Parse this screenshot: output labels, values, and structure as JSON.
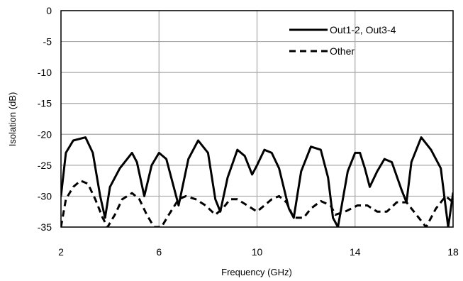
{
  "chart_data": {
    "type": "line",
    "xlabel": "Frequency (GHz)",
    "ylabel": "Isolation (dB)",
    "xlim": [
      2,
      18
    ],
    "ylim": [
      -35,
      0
    ],
    "x_ticks": [
      2,
      6,
      10,
      14,
      18
    ],
    "y_ticks": [
      0,
      -5,
      -10,
      -15,
      -20,
      -25,
      -30,
      -35
    ],
    "x_tick_labels": [
      "2",
      "6",
      "10",
      "14",
      "18"
    ],
    "y_tick_labels": [
      "0",
      "-5",
      "-10",
      "-15",
      "-20",
      "-25",
      "-30",
      "-35"
    ],
    "grid": true,
    "legend_position": "top-right",
    "series": [
      {
        "name": "Out1-2, Out3-4",
        "style": "solid",
        "color": "#000000",
        "x": [
          2.0,
          2.2,
          2.5,
          3.0,
          3.3,
          3.6,
          3.8,
          4.0,
          4.4,
          4.9,
          5.1,
          5.4,
          5.7,
          6.0,
          6.3,
          6.8,
          7.2,
          7.6,
          8.0,
          8.3,
          8.5,
          8.8,
          9.2,
          9.5,
          9.8,
          10.0,
          10.3,
          10.6,
          10.9,
          11.3,
          11.5,
          11.8,
          12.2,
          12.6,
          12.9,
          13.1,
          13.3,
          13.7,
          14.0,
          14.2,
          14.4,
          14.6,
          14.9,
          15.2,
          15.5,
          15.9,
          16.1,
          16.3,
          16.7,
          17.1,
          17.5,
          17.8,
          18.0
        ],
        "y": [
          -30.0,
          -23.0,
          -21.0,
          -20.5,
          -23.0,
          -30.0,
          -33.5,
          -28.5,
          -25.5,
          -23.0,
          -24.5,
          -30.0,
          -25.0,
          -23.0,
          -24.0,
          -31.5,
          -24.0,
          -21.0,
          -23.0,
          -30.5,
          -32.5,
          -27.0,
          -22.5,
          -23.5,
          -26.5,
          -25.0,
          -22.5,
          -23.0,
          -25.5,
          -32.0,
          -33.5,
          -26.0,
          -22.0,
          -22.5,
          -27.0,
          -33.5,
          -35.0,
          -26.0,
          -23.0,
          -23.0,
          -25.5,
          -28.5,
          -26.0,
          -24.0,
          -24.5,
          -29.0,
          -31.0,
          -24.5,
          -20.5,
          -22.5,
          -25.5,
          -35.0,
          -29.5
        ]
      },
      {
        "name": "Other",
        "style": "dashed",
        "color": "#000000",
        "x": [
          2.0,
          2.2,
          2.5,
          2.8,
          3.1,
          3.4,
          3.7,
          3.9,
          4.2,
          4.5,
          4.9,
          5.2,
          5.5,
          5.8,
          6.1,
          6.4,
          6.8,
          7.1,
          7.5,
          7.9,
          8.3,
          8.6,
          8.9,
          9.2,
          9.6,
          10.0,
          10.3,
          10.6,
          10.9,
          11.2,
          11.5,
          11.9,
          12.2,
          12.6,
          13.0,
          13.2,
          13.6,
          14.1,
          14.5,
          14.9,
          15.3,
          15.7,
          16.1,
          16.5,
          16.9,
          17.3,
          17.7,
          18.0
        ],
        "y": [
          -35.0,
          -30.5,
          -28.5,
          -27.5,
          -28.0,
          -30.5,
          -33.5,
          -35.0,
          -33.0,
          -30.5,
          -29.5,
          -30.5,
          -33.0,
          -35.0,
          -35.0,
          -33.0,
          -30.5,
          -30.0,
          -30.5,
          -31.5,
          -33.0,
          -32.0,
          -30.5,
          -30.5,
          -31.5,
          -32.5,
          -31.5,
          -30.5,
          -30.0,
          -31.0,
          -33.5,
          -33.5,
          -32.0,
          -30.8,
          -31.5,
          -33.0,
          -32.5,
          -31.5,
          -31.5,
          -32.5,
          -32.5,
          -31.0,
          -31.0,
          -33.0,
          -35.0,
          -32.0,
          -30.0,
          -31.0
        ]
      }
    ]
  }
}
